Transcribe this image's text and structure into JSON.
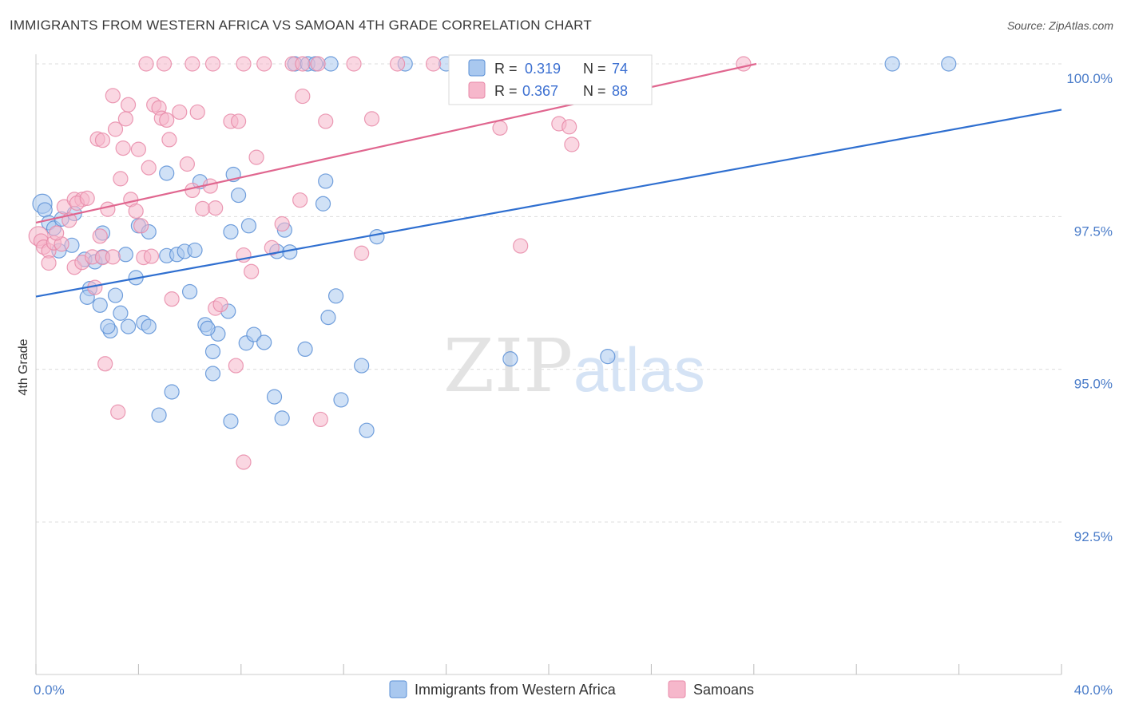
{
  "header": {
    "title": "IMMIGRANTS FROM WESTERN AFRICA VS SAMOAN 4TH GRADE CORRELATION CHART",
    "source": "Source: ZipAtlas.com"
  },
  "watermark": {
    "zip": "ZIP",
    "atlas": "atlas"
  },
  "colors": {
    "blue_fill": "#a9c8ef",
    "blue_stroke": "#5a8fd6",
    "blue_line": "#2f6fd0",
    "pink_fill": "#f6b7cb",
    "pink_stroke": "#e889a8",
    "pink_line": "#e0668f",
    "tick_text": "#4a7cc9",
    "grid": "#dcdcdc"
  },
  "legend": {
    "series": [
      {
        "r_label": "R =",
        "r_value": "0.319",
        "n_label": "N =",
        "n_value": "74"
      },
      {
        "r_label": "R =",
        "r_value": "0.367",
        "n_label": "N =",
        "n_value": "88"
      }
    ]
  },
  "chart_data": {
    "type": "scatter",
    "title": "IMMIGRANTS FROM WESTERN AFRICA VS SAMOAN 4TH GRADE CORRELATION CHART",
    "xlabel": "",
    "ylabel": "4th Grade",
    "xlim": [
      0,
      40
    ],
    "ylim": [
      90.2,
      100.4
    ],
    "x_tick_labels": [
      {
        "value": 0,
        "label": "0.0%"
      },
      {
        "value": 40,
        "label": "40.0%"
      }
    ],
    "x_minor_ticks": [
      0,
      4,
      8,
      12,
      16,
      20,
      24,
      28,
      32,
      36,
      40
    ],
    "y_ticks": [
      {
        "value": 100.0,
        "label": "100.0%"
      },
      {
        "value": 97.5,
        "label": "97.5%"
      },
      {
        "value": 95.0,
        "label": "95.0%"
      },
      {
        "value": 92.5,
        "label": "92.5%"
      }
    ],
    "grid": true,
    "legend_position": "top-center",
    "series": [
      {
        "name": "Immigrants from Western Africa",
        "color": "blue",
        "R": 0.319,
        "N": 74,
        "trend": {
          "x": [
            0,
            40
          ],
          "y": [
            96.19,
            99.25
          ]
        },
        "points": [
          [
            0.25,
            97.71
          ],
          [
            0.35,
            97.61
          ],
          [
            0.5,
            97.4
          ],
          [
            0.7,
            97.31
          ],
          [
            1.0,
            97.46
          ],
          [
            1.5,
            97.55
          ],
          [
            0.9,
            96.94
          ],
          [
            1.4,
            97.03
          ],
          [
            1.9,
            96.8
          ],
          [
            2.3,
            96.76
          ],
          [
            2.6,
            97.23
          ],
          [
            2.6,
            96.84
          ],
          [
            2.1,
            96.32
          ],
          [
            2.0,
            96.18
          ],
          [
            2.5,
            96.05
          ],
          [
            3.1,
            96.21
          ],
          [
            3.3,
            95.92
          ],
          [
            3.6,
            95.7
          ],
          [
            2.9,
            95.63
          ],
          [
            2.8,
            95.7
          ],
          [
            3.9,
            96.5
          ],
          [
            4.2,
            95.76
          ],
          [
            4.4,
            95.7
          ],
          [
            3.5,
            96.88
          ],
          [
            4.0,
            97.35
          ],
          [
            4.4,
            97.25
          ],
          [
            5.1,
            96.86
          ],
          [
            5.5,
            96.88
          ],
          [
            5.8,
            96.93
          ],
          [
            6.2,
            96.95
          ],
          [
            5.1,
            98.21
          ],
          [
            6.4,
            98.07
          ],
          [
            7.7,
            98.19
          ],
          [
            7.9,
            97.85
          ],
          [
            7.6,
            97.25
          ],
          [
            8.3,
            97.35
          ],
          [
            6.6,
            95.73
          ],
          [
            7.1,
            95.58
          ],
          [
            6.9,
            95.29
          ],
          [
            7.5,
            95.95
          ],
          [
            6.0,
            96.27
          ],
          [
            8.2,
            95.43
          ],
          [
            8.5,
            95.57
          ],
          [
            8.9,
            95.44
          ],
          [
            9.4,
            96.93
          ],
          [
            9.9,
            96.92
          ],
          [
            9.7,
            97.28
          ],
          [
            10.5,
            95.33
          ],
          [
            11.4,
            95.85
          ],
          [
            11.7,
            96.2
          ],
          [
            11.2,
            97.71
          ],
          [
            11.3,
            98.08
          ],
          [
            13.3,
            97.17
          ],
          [
            12.7,
            95.06
          ],
          [
            12.9,
            94.0
          ],
          [
            11.9,
            94.5
          ],
          [
            9.3,
            94.55
          ],
          [
            9.6,
            94.2
          ],
          [
            7.6,
            94.15
          ],
          [
            6.9,
            94.93
          ],
          [
            5.3,
            94.63
          ],
          [
            4.8,
            94.25
          ],
          [
            6.7,
            95.67
          ],
          [
            10.1,
            100.0
          ],
          [
            10.6,
            100.0
          ],
          [
            10.9,
            100.0
          ],
          [
            11.5,
            100.0
          ],
          [
            14.4,
            100.0
          ],
          [
            16.0,
            100.0
          ],
          [
            16.6,
            100.0
          ],
          [
            18.5,
            95.17
          ],
          [
            22.3,
            95.21
          ],
          [
            33.4,
            100.0
          ],
          [
            35.6,
            100.0
          ]
        ]
      },
      {
        "name": "Samoans",
        "color": "pink",
        "R": 0.367,
        "N": 88,
        "trend": {
          "x": [
            0,
            28.1
          ],
          "y": [
            97.4,
            100.0
          ]
        },
        "points": [
          [
            0.1,
            97.18
          ],
          [
            0.2,
            97.1
          ],
          [
            0.3,
            97.0
          ],
          [
            0.5,
            96.94
          ],
          [
            0.5,
            96.74
          ],
          [
            0.7,
            97.07
          ],
          [
            1.0,
            97.05
          ],
          [
            0.8,
            97.23
          ],
          [
            1.1,
            97.66
          ],
          [
            1.3,
            97.44
          ],
          [
            1.5,
            97.78
          ],
          [
            1.8,
            97.78
          ],
          [
            1.6,
            97.72
          ],
          [
            2.0,
            97.8
          ],
          [
            1.5,
            96.67
          ],
          [
            1.8,
            96.75
          ],
          [
            2.2,
            96.84
          ],
          [
            2.3,
            96.34
          ],
          [
            2.5,
            97.18
          ],
          [
            2.6,
            96.83
          ],
          [
            2.8,
            97.62
          ],
          [
            3.0,
            96.84
          ],
          [
            2.4,
            98.77
          ],
          [
            2.6,
            98.75
          ],
          [
            3.0,
            99.48
          ],
          [
            3.1,
            98.93
          ],
          [
            3.3,
            98.12
          ],
          [
            3.4,
            98.62
          ],
          [
            3.5,
            99.1
          ],
          [
            3.6,
            99.33
          ],
          [
            3.7,
            97.78
          ],
          [
            3.9,
            97.59
          ],
          [
            4.0,
            98.6
          ],
          [
            4.1,
            97.35
          ],
          [
            4.2,
            96.83
          ],
          [
            4.5,
            96.85
          ],
          [
            4.4,
            98.3
          ],
          [
            4.6,
            99.33
          ],
          [
            4.8,
            99.28
          ],
          [
            4.9,
            99.11
          ],
          [
            5.1,
            99.08
          ],
          [
            5.2,
            98.76
          ],
          [
            5.6,
            99.21
          ],
          [
            5.9,
            98.36
          ],
          [
            6.1,
            97.93
          ],
          [
            6.3,
            99.21
          ],
          [
            6.5,
            97.63
          ],
          [
            6.8,
            98.0
          ],
          [
            7.0,
            97.64
          ],
          [
            7.0,
            96.0
          ],
          [
            7.2,
            96.06
          ],
          [
            7.6,
            99.06
          ],
          [
            7.9,
            99.06
          ],
          [
            8.1,
            96.87
          ],
          [
            8.4,
            96.6
          ],
          [
            8.6,
            98.47
          ],
          [
            9.2,
            96.99
          ],
          [
            9.6,
            97.38
          ],
          [
            10.3,
            97.77
          ],
          [
            10.4,
            99.47
          ],
          [
            11.3,
            99.06
          ],
          [
            12.7,
            96.9
          ],
          [
            13.1,
            99.1
          ],
          [
            18.1,
            98.95
          ],
          [
            20.4,
            99.02
          ],
          [
            20.8,
            98.97
          ],
          [
            20.9,
            98.68
          ],
          [
            18.9,
            97.02
          ],
          [
            2.7,
            95.09
          ],
          [
            3.2,
            94.3
          ],
          [
            5.3,
            96.15
          ],
          [
            7.8,
            95.06
          ],
          [
            8.1,
            93.48
          ],
          [
            11.1,
            94.18
          ],
          [
            4.3,
            100.0
          ],
          [
            5.0,
            100.0
          ],
          [
            6.1,
            100.0
          ],
          [
            6.9,
            100.0
          ],
          [
            8.1,
            100.0
          ],
          [
            8.9,
            100.0
          ],
          [
            10.0,
            100.0
          ],
          [
            10.4,
            100.0
          ],
          [
            11.0,
            100.0
          ],
          [
            12.4,
            100.0
          ],
          [
            14.1,
            100.0
          ],
          [
            15.5,
            100.0
          ],
          [
            16.8,
            100.0
          ],
          [
            27.6,
            100.0
          ]
        ]
      }
    ]
  }
}
